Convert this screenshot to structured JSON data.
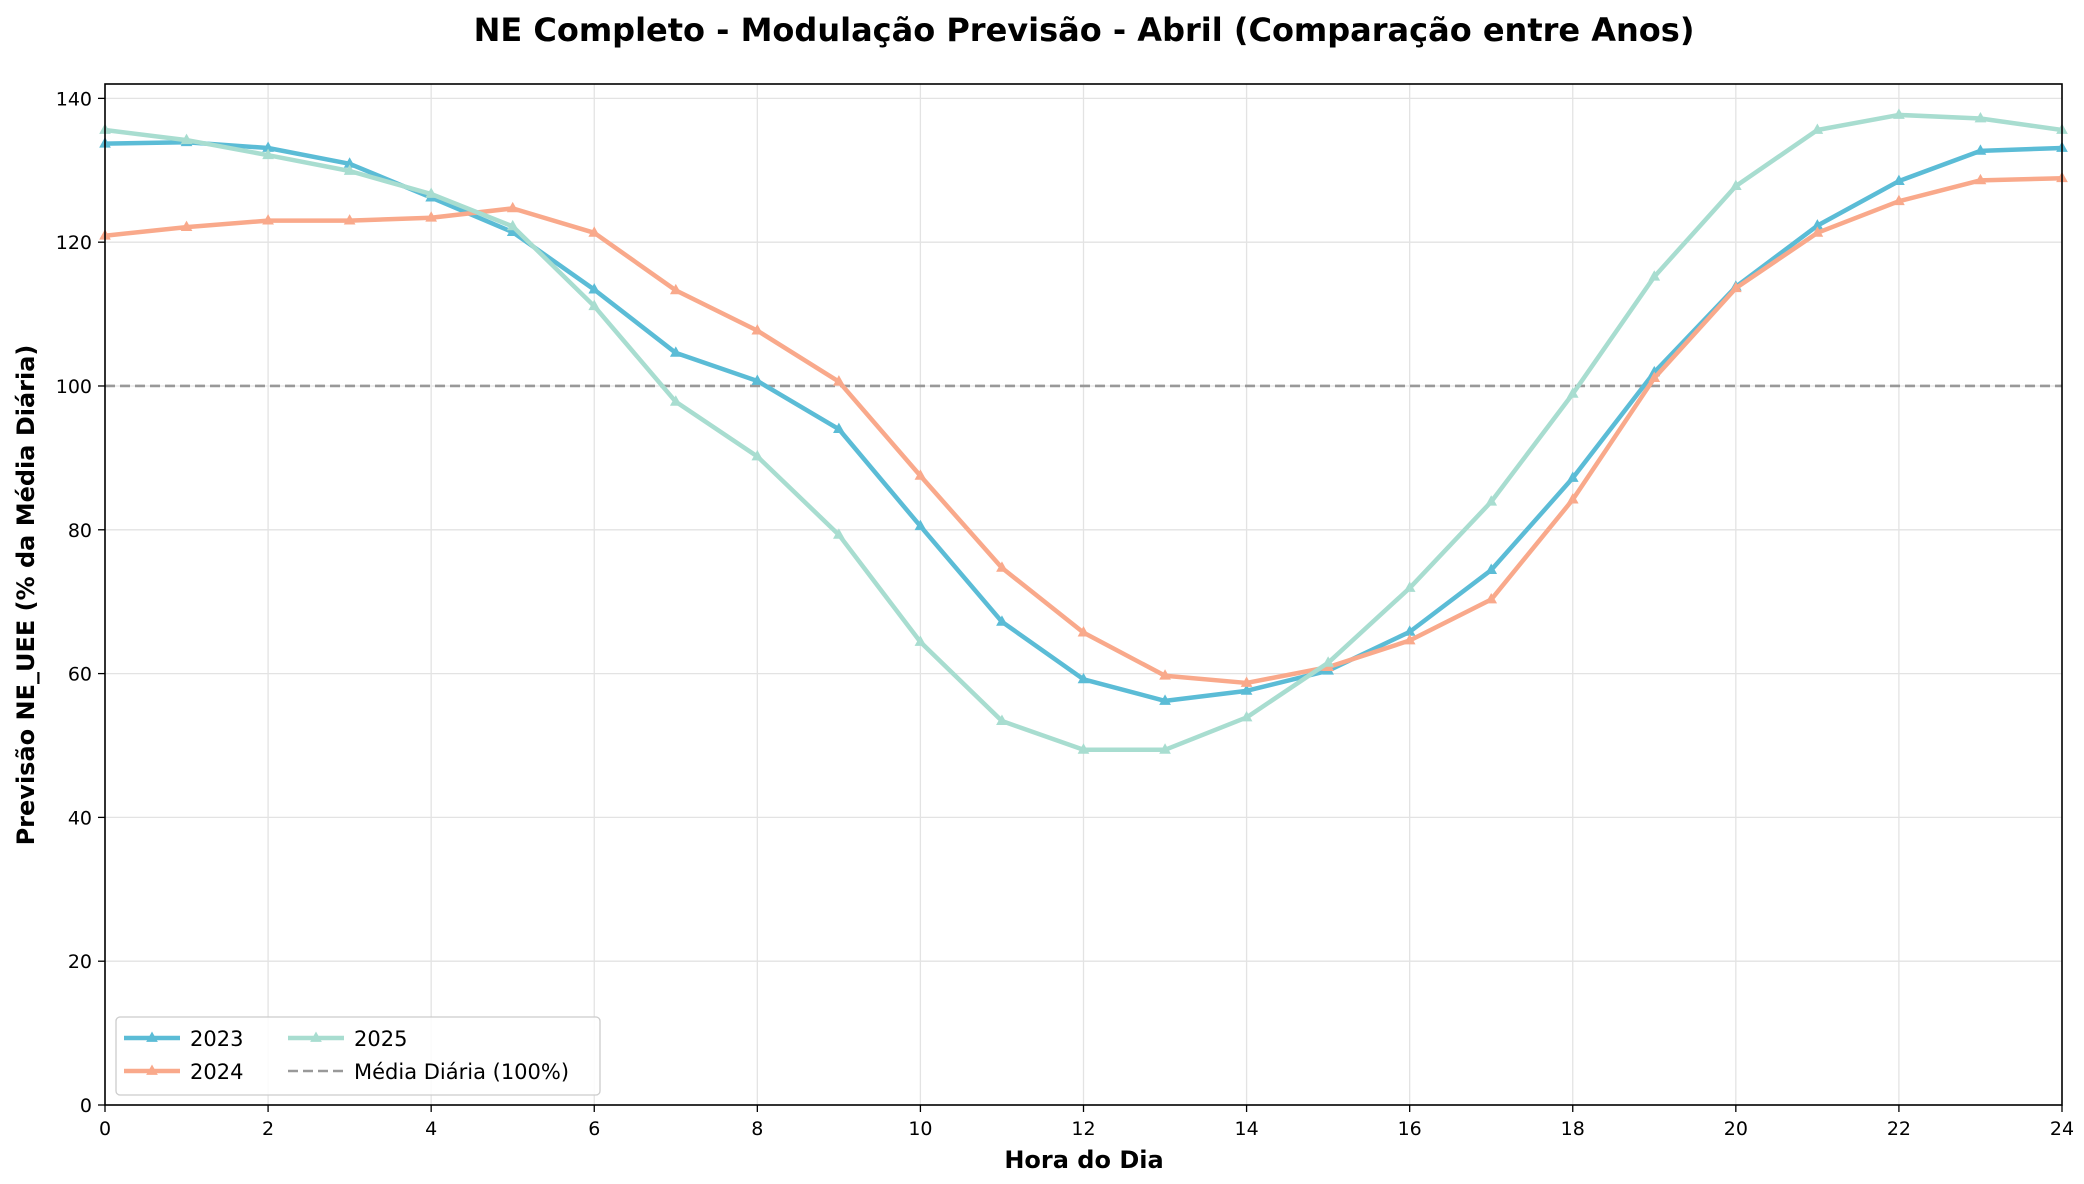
{
  "chart_data": {
    "type": "line",
    "title": "NE Completo - Modulação Previsão - Abril (Comparação entre Anos)",
    "xlabel": "Hora do Dia",
    "ylabel": "Previsão NE_UEE (% da Média Diária)",
    "xlim": [
      0,
      24
    ],
    "ylim": [
      0,
      142
    ],
    "xticks": [
      0,
      2,
      4,
      6,
      8,
      10,
      12,
      14,
      16,
      18,
      20,
      22,
      24
    ],
    "yticks": [
      0,
      20,
      40,
      60,
      80,
      100,
      120,
      140
    ],
    "grid": true,
    "legend_position": "lower-left",
    "x": [
      0,
      1,
      2,
      3,
      4,
      5,
      6,
      7,
      8,
      9,
      10,
      11,
      12,
      13,
      14,
      15,
      16,
      17,
      18,
      19,
      20,
      21,
      22,
      23,
      24
    ],
    "series": [
      {
        "name": "2023",
        "color": "#5bbcd6",
        "marker": "triangle",
        "values": [
          133.7,
          133.9,
          133.1,
          130.9,
          126.2,
          121.4,
          113.4,
          104.6,
          100.7,
          94.0,
          80.5,
          67.2,
          59.2,
          56.2,
          57.6,
          60.4,
          65.8,
          74.4,
          87.2,
          101.9,
          113.8,
          122.3,
          128.5,
          132.7,
          133.1
        ]
      },
      {
        "name": "2024",
        "color": "#f9a98b",
        "marker": "triangle",
        "values": [
          120.9,
          122.1,
          123.0,
          123.0,
          123.4,
          124.7,
          121.3,
          113.3,
          107.7,
          100.6,
          87.5,
          74.7,
          65.7,
          59.7,
          58.7,
          60.9,
          64.6,
          70.3,
          84.2,
          101.1,
          113.6,
          121.3,
          125.7,
          128.6,
          128.9
        ]
      },
      {
        "name": "2025",
        "color": "#a8ddd0",
        "marker": "triangle",
        "values": [
          135.6,
          134.2,
          132.1,
          129.9,
          126.7,
          122.2,
          111.1,
          97.8,
          90.2,
          79.3,
          64.4,
          53.4,
          49.4,
          49.4,
          53.9,
          61.5,
          71.9,
          83.9,
          98.9,
          115.2,
          127.8,
          135.6,
          137.7,
          137.2,
          135.6
        ]
      }
    ],
    "reference_line": {
      "label": "Média Diária (100%)",
      "value": 100,
      "color": "#999999",
      "style": "dashed"
    }
  }
}
